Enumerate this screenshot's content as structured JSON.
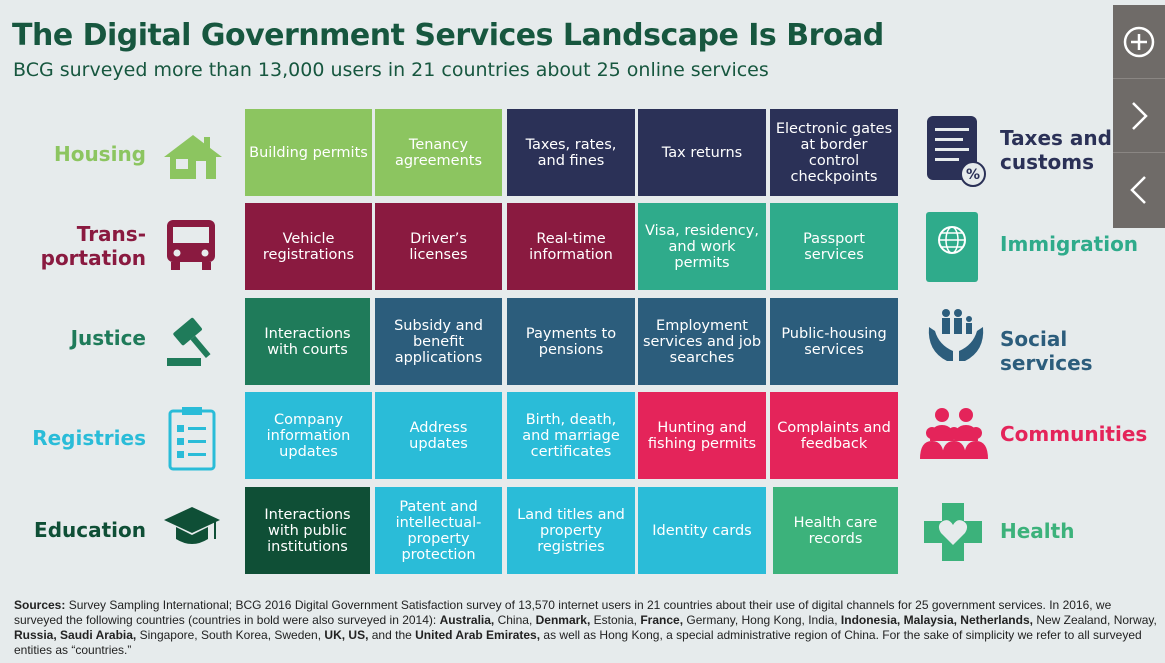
{
  "header": {
    "title": "The Digital Government Services Landscape Is Broad",
    "subtitle": "BCG surveyed more than 13,000 users in 21 countries about 25 online services"
  },
  "colors": {
    "housing": "#8cc560",
    "taxes": "#2b3157",
    "transportation": "#8a1a40",
    "immigration": "#2fab8b",
    "justice": "#1f7b5a",
    "social": "#2c5d7c",
    "registries": "#2abcd8",
    "communities": "#e4245a",
    "education": "#0f4f36",
    "health": "#3cb27b"
  },
  "left_categories": [
    "Housing",
    "Trans-\nportation",
    "Justice",
    "Registries",
    "Education"
  ],
  "right_categories": [
    "Taxes and customs",
    "Immigration",
    "Social services",
    "Communities",
    "Health"
  ],
  "cells": [
    [
      "Building permits",
      "Tenancy agreements",
      "Taxes, rates, and fines",
      "Tax returns",
      "Electronic gates at border control checkpoints"
    ],
    [
      "Vehicle registrations",
      "Driver’s licenses",
      "Real-time information",
      "Visa, residency, and work permits",
      "Passport services"
    ],
    [
      "Interactions with courts",
      "Subsidy and benefit applications",
      "Payments to pensions",
      "Employment services and job searches",
      "Public-housing services"
    ],
    [
      "Company information updates",
      "Address updates",
      "Birth, death, and marriage certificates",
      "Hunting and fishing permits",
      "Complaints and feedback"
    ],
    [
      "Interactions with public institutions",
      "Patent and intellectual-property protection",
      "Land titles and property registries",
      "Identity cards",
      "Health care records"
    ]
  ],
  "side_buttons": [
    "+",
    "›",
    "‹"
  ],
  "footer": {
    "sources_label": "Sources:",
    "text1": " Survey Sampling International; BCG 2016 Digital Government Satisfaction survey of 13,570 internet users in 21 countries about their use of digital channels for 25 government services. In 2016, we surveyed the following countries (countries in bold were also surveyed in 2014): ",
    "b1": "Australia,",
    "t2": " China, ",
    "b2": "Denmark,",
    "t3": " Estonia, ",
    "b3": "France,",
    "t4": " Germany, Hong Kong, India, ",
    "b4": "Indonesia, Malaysia, Netherlands,",
    "t5": " New Zealand, Norway, ",
    "b5": "Russia, Saudi Arabia,",
    "t6": " Singapore, South Korea, Sweden, ",
    "b6": "UK, US,",
    "t7": " and the ",
    "b7": "United Arab Emirates,",
    "t8": " as well as Hong Kong, a special administrative region of China. For the sake of simplicity we refer to all surveyed entities as “countries.”"
  }
}
